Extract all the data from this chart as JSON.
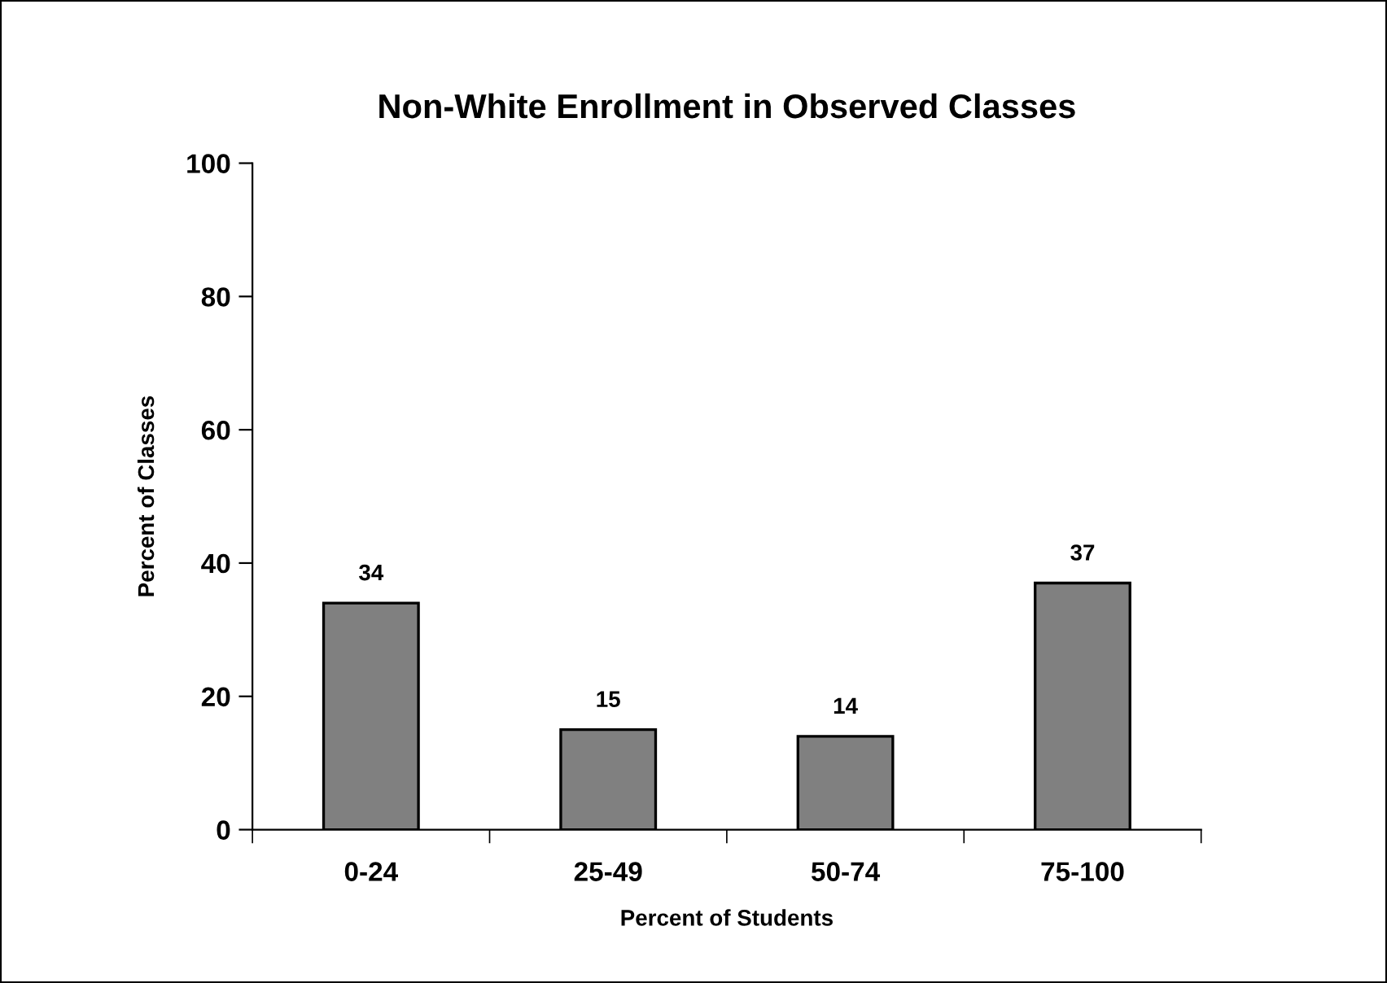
{
  "chart_data": {
    "type": "bar",
    "title": "Non-White Enrollment in Observed Classes",
    "xlabel": "Percent of Students",
    "ylabel": "Percent of Classes",
    "categories": [
      "0-24",
      "25-49",
      "50-74",
      "75-100"
    ],
    "values": [
      34,
      15,
      14,
      37
    ],
    "color": "#808080",
    "ylim": [
      0,
      100
    ],
    "yticks": [
      0,
      20,
      40,
      60,
      80,
      100
    ],
    "grid": false,
    "data_labels": true
  }
}
